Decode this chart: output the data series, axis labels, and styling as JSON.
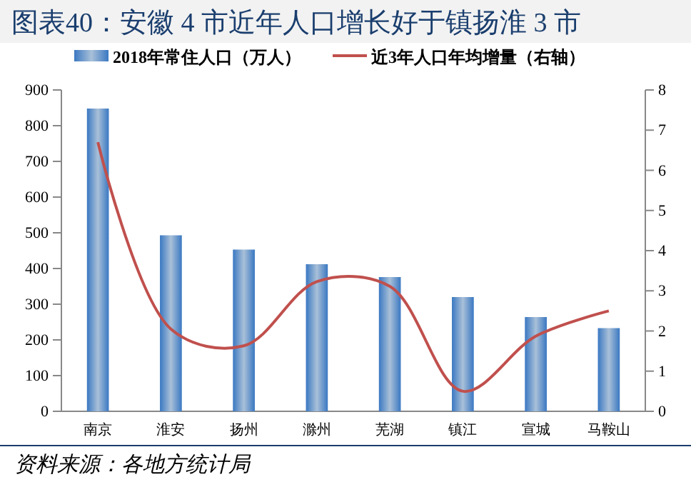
{
  "chart_data": {
    "type": "bar",
    "title": "图表40：安徽 4 市近年人口增长好于镇扬淮 3 市",
    "categories": [
      "南京",
      "淮安",
      "扬州",
      "滁州",
      "芜湖",
      "镇江",
      "宣城",
      "马鞍山"
    ],
    "series": [
      {
        "name": "2018年常住人口（万人）",
        "color": "#3a78c2",
        "values": [
          848,
          493,
          453,
          412,
          376,
          320,
          264,
          233
        ]
      },
      {
        "name": "近3年人口年均增量（右轴）",
        "type": "line",
        "axis": "y2",
        "color": "#c0504d",
        "values": [
          6.7,
          2.05,
          1.63,
          3.23,
          3.11,
          0.5,
          1.87,
          2.5
        ]
      }
    ],
    "ylim": [
      0,
      900
    ],
    "yticks": [
      0,
      100,
      200,
      300,
      400,
      500,
      600,
      700,
      800,
      900
    ],
    "y2lim": [
      0,
      8
    ],
    "y2ticks": [
      0,
      1,
      2,
      3,
      4,
      5,
      6,
      7,
      8
    ],
    "legend": "top",
    "marker": "none",
    "line_style": "solid",
    "annotations": [
      "资料来源：各地方统计局"
    ]
  }
}
